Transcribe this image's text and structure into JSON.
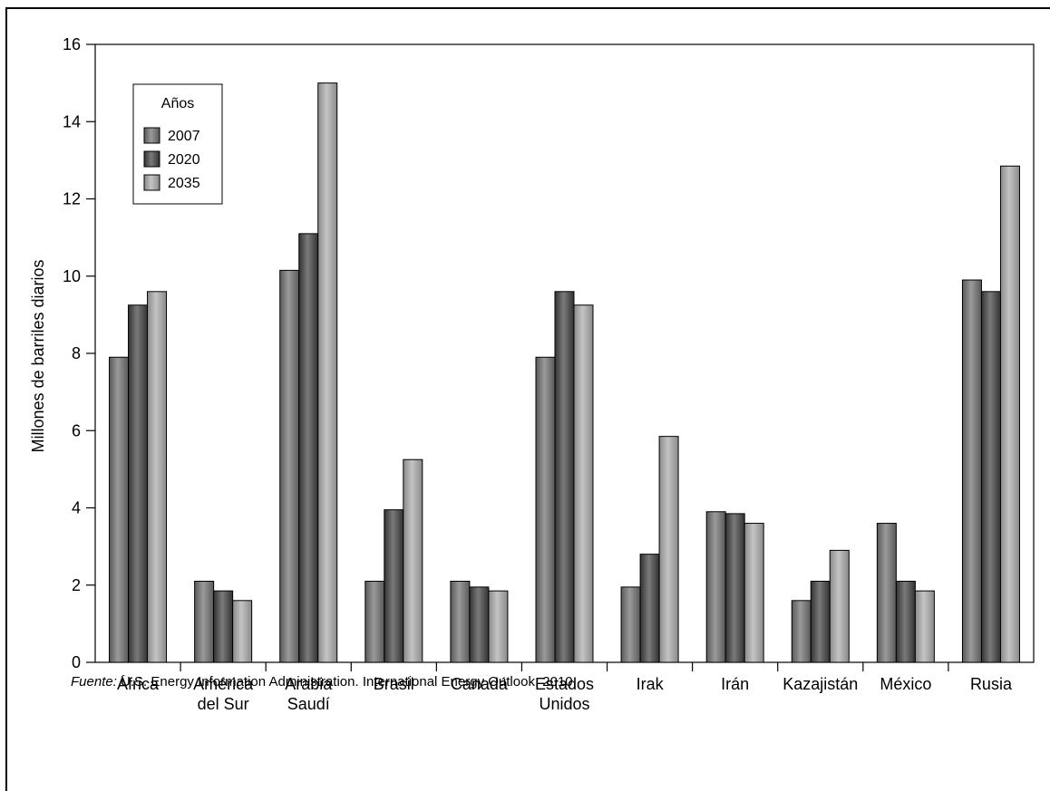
{
  "chart_data": {
    "type": "bar",
    "ylabel": "Millones de barriles diarios",
    "xlabel": "",
    "ylim": [
      0,
      16
    ],
    "yticks": [
      0,
      2,
      4,
      6,
      8,
      10,
      12,
      14,
      16
    ],
    "grid": false,
    "legend": {
      "title": "Años",
      "position": "top-left"
    },
    "categories": [
      [
        "África"
      ],
      [
        "América",
        "del Sur"
      ],
      [
        "Arabia",
        "Saudí"
      ],
      [
        "Brasil"
      ],
      [
        "Canadá"
      ],
      [
        "Estados",
        "Unidos"
      ],
      [
        "Irak"
      ],
      [
        "Irán"
      ],
      [
        "Kazajistán"
      ],
      [
        "México"
      ],
      [
        "Rusia"
      ]
    ],
    "series": [
      {
        "name": "2007",
        "color_light": "#9a9a9a",
        "color_dark": "#5a5a5a",
        "values": [
          7.9,
          2.1,
          10.15,
          2.1,
          2.1,
          7.9,
          1.95,
          3.9,
          1.6,
          3.6,
          9.9
        ]
      },
      {
        "name": "2020",
        "color_light": "#7a7a7a",
        "color_dark": "#333333",
        "values": [
          9.25,
          1.85,
          11.1,
          3.95,
          1.95,
          9.6,
          2.8,
          3.85,
          2.1,
          2.1,
          9.6
        ]
      },
      {
        "name": "2035",
        "color_light": "#c4c4c4",
        "color_dark": "#8a8a8a",
        "values": [
          9.6,
          1.6,
          15.0,
          5.25,
          1.85,
          9.25,
          5.85,
          3.6,
          2.9,
          1.85,
          12.85
        ]
      }
    ]
  },
  "source": {
    "label": "Fuente:",
    "text": " U.S. Energy Information Administration. International Energy Outlook, 2010."
  }
}
